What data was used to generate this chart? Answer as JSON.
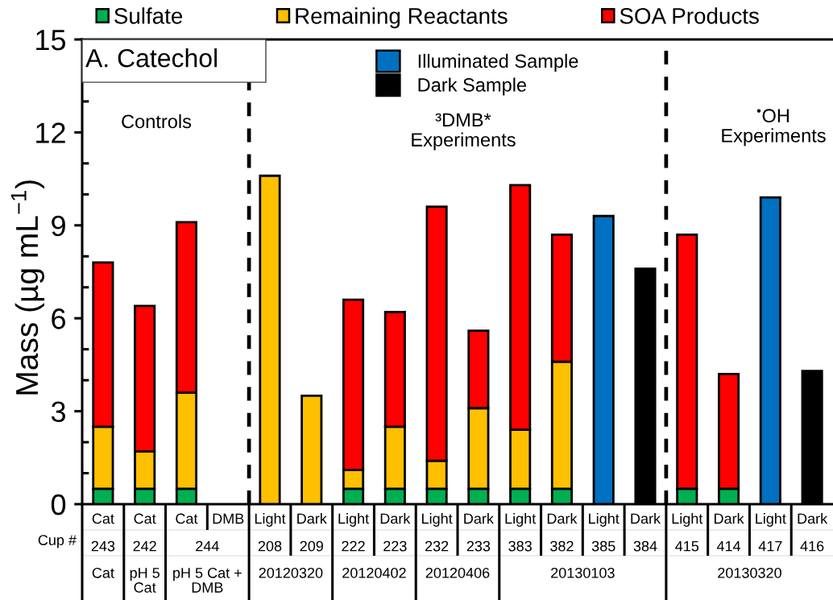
{
  "chart_data": {
    "type": "bar",
    "stacked": true,
    "title": "A. Catechol",
    "ylabel": "Mass (µg mL$^{−1}$)",
    "categories": [
      "Cat",
      "Cat",
      "Cat",
      "DMB",
      "Light",
      "Dark",
      "Light",
      "Dark",
      "Light",
      "Dark",
      "Light",
      "Dark",
      "Light",
      "Dark",
      "Light",
      "Dark",
      "Light",
      "Dark"
    ],
    "series": [
      {
        "name": "Sulfate",
        "color": "#00b050",
        "values": [
          0.5,
          0.5,
          0.5,
          null,
          null,
          null,
          0.5,
          0.5,
          0.5,
          0.5,
          0.5,
          0.5,
          null,
          null,
          0.5,
          0.5,
          null,
          null
        ]
      },
      {
        "name": "Remaining Reactants",
        "color": "#ffc000",
        "values": [
          2.0,
          1.2,
          3.1,
          null,
          10.6,
          3.5,
          0.6,
          2.0,
          0.9,
          2.6,
          1.9,
          4.1,
          null,
          null,
          null,
          null,
          null,
          null
        ]
      },
      {
        "name": "SOA Products",
        "color": "#ff0000",
        "values": [
          5.3,
          4.7,
          5.5,
          null,
          null,
          null,
          5.5,
          3.7,
          8.2,
          2.5,
          7.9,
          4.1,
          null,
          null,
          8.2,
          3.7,
          null,
          null
        ]
      },
      {
        "name": "Illuminated Sample",
        "color": "#0070c0",
        "values": [
          null,
          null,
          null,
          null,
          null,
          null,
          null,
          null,
          null,
          null,
          null,
          null,
          9.3,
          null,
          null,
          null,
          9.9,
          null
        ]
      },
      {
        "name": "Dark Sample",
        "color": "#000000",
        "values": [
          null,
          null,
          null,
          null,
          null,
          null,
          null,
          null,
          null,
          null,
          null,
          null,
          null,
          7.6,
          null,
          null,
          null,
          4.3
        ]
      }
    ],
    "ylim": [
      0,
      15
    ],
    "yticks": [
      0,
      3,
      6,
      9,
      12,
      15
    ],
    "legend": "top",
    "annotations": [
      "Controls",
      "³DMB*\nExperiments",
      "$^{•}$OH\nExperiments",
      "Cup #",
      "243",
      "242",
      "244",
      "208",
      "209",
      "222",
      "223",
      "232",
      "233",
      "383",
      "382",
      "385",
      "384",
      "415",
      "414",
      "417",
      "416",
      "Cat",
      "pH 5\nCat",
      "pH 5 Cat +\nDMB",
      "20120320",
      "20120402",
      "20120406",
      "20130103",
      "20130320"
    ]
  }
}
